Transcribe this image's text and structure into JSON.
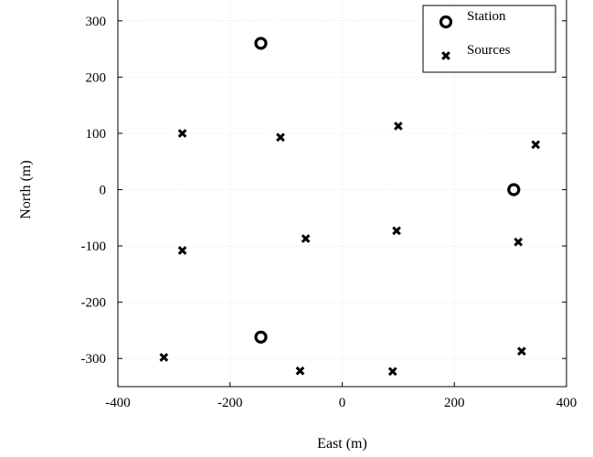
{
  "chart_data": {
    "type": "scatter",
    "xlabel": "East (m)",
    "ylabel": "North (m)",
    "xlim": [
      -400,
      400
    ],
    "ylim": [
      -350,
      350
    ],
    "grid": true,
    "legend": "top-right",
    "x_ticks": [
      -400,
      -200,
      0,
      200,
      400
    ],
    "y_ticks": [
      300,
      200,
      100,
      0,
      -100,
      -200,
      -300
    ],
    "series": [
      {
        "name": "Station",
        "marker": "o",
        "points": [
          {
            "x": -145,
            "y": 260
          },
          {
            "x": 306,
            "y": 0
          },
          {
            "x": -145,
            "y": -262
          }
        ]
      },
      {
        "name": "Sources",
        "marker": "x",
        "points": [
          {
            "x": -285,
            "y": 100
          },
          {
            "x": -110,
            "y": 93
          },
          {
            "x": 100,
            "y": 113
          },
          {
            "x": 345,
            "y": 80
          },
          {
            "x": -285,
            "y": -108
          },
          {
            "x": -65,
            "y": -87
          },
          {
            "x": 97,
            "y": -73
          },
          {
            "x": 314,
            "y": -93
          },
          {
            "x": -318,
            "y": -298
          },
          {
            "x": -75,
            "y": -322
          },
          {
            "x": 90,
            "y": -323
          },
          {
            "x": 320,
            "y": -287
          }
        ]
      }
    ]
  }
}
